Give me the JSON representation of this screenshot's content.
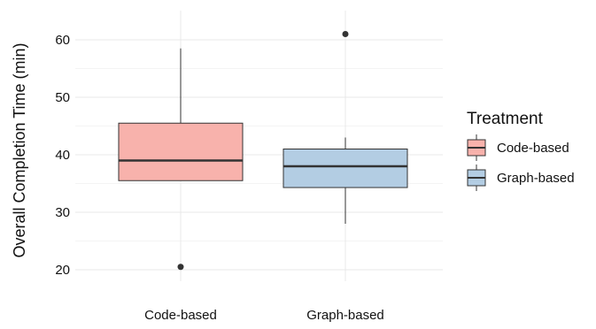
{
  "chart_data": {
    "type": "boxplot",
    "ylabel": "Overall Completion Time (min)",
    "ylim": [
      18,
      63
    ],
    "yticks": [
      20,
      30,
      40,
      50,
      60
    ],
    "grid": true,
    "categories": [
      "Code-based",
      "Graph-based"
    ],
    "boxes": [
      {
        "category": "Code-based",
        "min": 20.5,
        "q1": 35.5,
        "median": 39,
        "q3": 45.5,
        "max": 58.5,
        "outliers": [
          20.5
        ],
        "color": "#F8B2AC"
      },
      {
        "category": "Graph-based",
        "min": 28,
        "q1": 34.3,
        "median": 38,
        "q3": 41,
        "max": 43,
        "outliers": [
          61
        ],
        "color": "#B3CDE3"
      }
    ],
    "legend": {
      "title": "Treatment",
      "position": "right",
      "entries": [
        "Code-based",
        "Graph-based"
      ]
    }
  }
}
